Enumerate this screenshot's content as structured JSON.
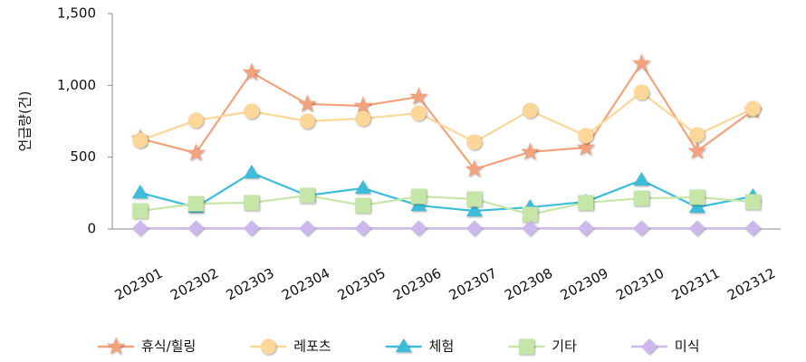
{
  "chart_data": {
    "type": "line",
    "y_label": "언급량(건)",
    "categories": [
      "202301",
      "202302",
      "202303",
      "202304",
      "202305",
      "202306",
      "202307",
      "202308",
      "202309",
      "202310",
      "202311",
      "202312"
    ],
    "series": [
      {
        "name": "휴식/힐링",
        "color": "#f5a27c",
        "marker": "star",
        "values": [
          630,
          529,
          1090,
          870,
          857,
          920,
          416,
          536,
          567,
          1153,
          542,
          825
        ]
      },
      {
        "name": "레포츠",
        "color": "#fdd797",
        "marker": "circle",
        "values": [
          617,
          756,
          819,
          750,
          769,
          807,
          605,
          825,
          649,
          951,
          655,
          838
        ]
      },
      {
        "name": "체험",
        "color": "#3dbdd9",
        "marker": "triangle",
        "values": [
          252,
          151,
          391,
          233,
          284,
          164,
          126,
          151,
          189,
          340,
          151,
          227
        ]
      },
      {
        "name": "기타",
        "color": "#c6e6a7",
        "marker": "square",
        "values": [
          126,
          176,
          183,
          233,
          164,
          227,
          208,
          101,
          183,
          214,
          221,
          189
        ]
      },
      {
        "name": "미식",
        "color": "#cdb8ee",
        "marker": "diamond",
        "values": [
          5,
          5,
          5,
          5,
          5,
          5,
          5,
          5,
          5,
          5,
          5,
          5
        ]
      }
    ],
    "ylim": [
      0,
      1500
    ],
    "yticks": [
      0,
      500,
      {
        "value": 1000,
        "label": "1,000"
      },
      {
        "value": 1500,
        "label": "1,500"
      }
    ],
    "grid": false,
    "legend": "bottom"
  }
}
